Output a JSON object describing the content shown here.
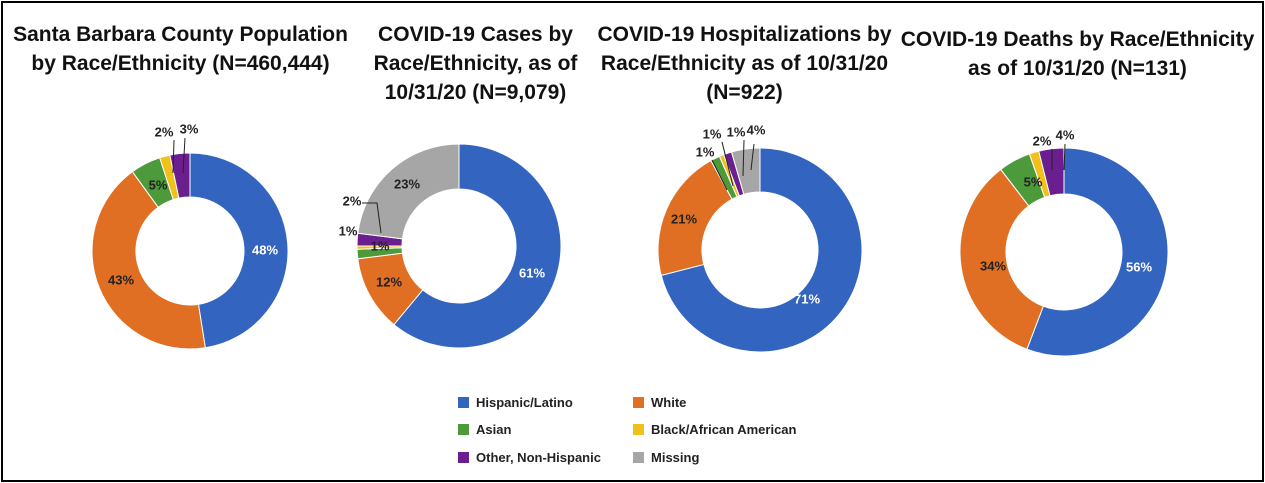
{
  "chart_data": [
    {
      "type": "pie",
      "title": "Santa Barbara County Population by Race/Ethnicity (N=460,444)",
      "categories": [
        "Hispanic/Latino",
        "White",
        "Asian",
        "Black/African American",
        "Other, Non-Hispanic",
        "Missing"
      ],
      "values": [
        47.5,
        42.5,
        5,
        1.7,
        3.3,
        0
      ],
      "labels": [
        "48%",
        "43%",
        "5%",
        "2%",
        "3%",
        ""
      ]
    },
    {
      "type": "pie",
      "title": "COVID-19 Cases by Race/Ethnicity, as of 10/31/20 (N=9,079)",
      "categories": [
        "Hispanic/Latino",
        "White",
        "Asian",
        "Black/African American",
        "Other, Non-Hispanic",
        "Missing"
      ],
      "values": [
        61,
        12,
        1.5,
        0.5,
        2,
        23
      ],
      "labels": [
        "61%",
        "12%",
        "1%",
        "1%",
        "2%",
        "23%"
      ]
    },
    {
      "type": "pie",
      "title": "COVID-19 Hospitalizations by Race/Ethnicity as of 10/31/20 (N=922)",
      "categories": [
        "Hispanic/Latino",
        "White",
        "Asian",
        "Black/African American",
        "Other, Non-Hispanic",
        "Missing"
      ],
      "values": [
        71,
        21,
        1.5,
        0.7,
        1.3,
        4.5
      ],
      "labels": [
        "71%",
        "21%",
        "1%",
        "1%",
        "1%",
        "4%"
      ]
    },
    {
      "type": "pie",
      "title": "COVID-19 Deaths by Race/Ethnicity as of 10/31/20 (N=131)",
      "categories": [
        "Hispanic/Latino",
        "White",
        "Asian",
        "Black/African American",
        "Other, Non-Hispanic",
        "Missing"
      ],
      "values": [
        55.8,
        33.8,
        5,
        1.5,
        3.9,
        0
      ],
      "labels": [
        "56%",
        "34%",
        "5%",
        "2%",
        "4%",
        ""
      ]
    }
  ],
  "legend": [
    {
      "label": "Hispanic/Latino",
      "color": "#3365c0"
    },
    {
      "label": "White",
      "color": "#e06f23"
    },
    {
      "label": "Asian",
      "color": "#4c9a3a"
    },
    {
      "label": "Black/African American",
      "color": "#f2c01a"
    },
    {
      "label": "Other, Non-Hispanic",
      "color": "#6b1f8f"
    },
    {
      "label": "Missing",
      "color": "#a6a6a6"
    }
  ]
}
